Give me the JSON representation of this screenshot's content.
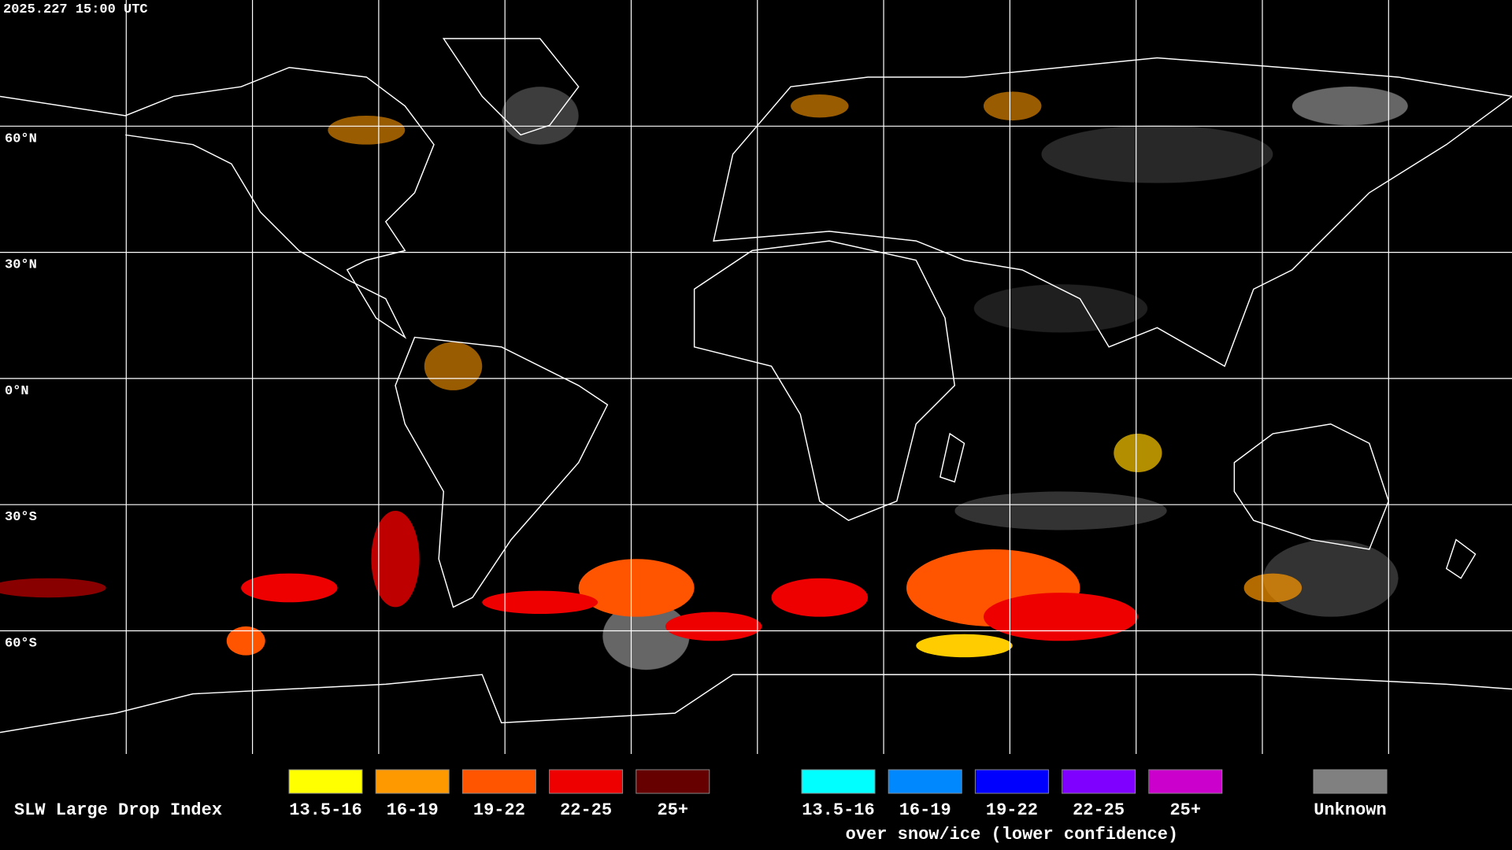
{
  "header": {
    "timestamp": "2025.227 15:00 UTC"
  },
  "map": {
    "lat_labels": [
      "60°N",
      "30°N",
      "0°N",
      "30°S",
      "60°S"
    ]
  },
  "legend": {
    "title": "SLW Large Drop Index",
    "groups": [
      {
        "items": [
          {
            "label": "13.5-16",
            "color": "#ffff00"
          },
          {
            "label": "16-19",
            "color": "#ff9900"
          },
          {
            "label": "19-22",
            "color": "#ff5500"
          },
          {
            "label": "22-25",
            "color": "#ee0000"
          },
          {
            "label": "25+",
            "color": "#660000"
          }
        ]
      },
      {
        "items": [
          {
            "label": "13.5-16",
            "color": "#00ffff"
          },
          {
            "label": "16-19",
            "color": "#0088ff"
          },
          {
            "label": "19-22",
            "color": "#0000ff"
          },
          {
            "label": "22-25",
            "color": "#8000ff"
          },
          {
            "label": "25+",
            "color": "#cc00cc"
          }
        ],
        "caption": "over snow/ice (lower confidence)"
      }
    ],
    "unknown": {
      "label": "Unknown",
      "color": "#808080"
    }
  }
}
